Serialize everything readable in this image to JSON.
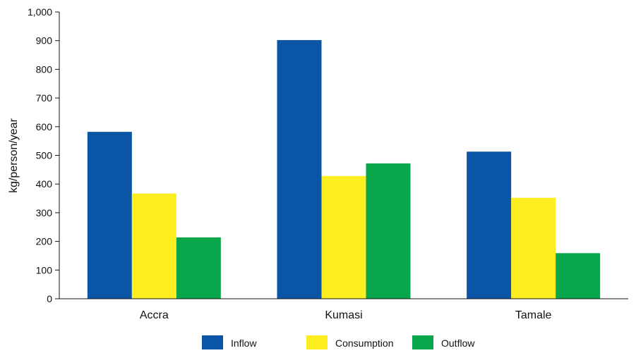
{
  "chart_data": {
    "type": "bar",
    "categories": [
      "Accra",
      "Kumasi",
      "Tamale"
    ],
    "series": [
      {
        "name": "Inflow",
        "color": "#0b55a6",
        "values": [
          582,
          902,
          513
        ]
      },
      {
        "name": "Consumption",
        "color": "#fcee21",
        "values": [
          367,
          428,
          352
        ]
      },
      {
        "name": "Outflow",
        "color": "#0aa64b",
        "values": [
          214,
          472,
          159
        ]
      }
    ],
    "title": "",
    "xlabel": "",
    "ylabel": "kg/person/year",
    "ylim": [
      0,
      1000
    ],
    "yticks": [
      0,
      100,
      200,
      300,
      400,
      500,
      600,
      700,
      800,
      900,
      1000
    ],
    "ytick_labels": [
      "0",
      "100",
      "200",
      "300",
      "400",
      "500",
      "600",
      "700",
      "800",
      "900",
      "1,000"
    ],
    "grid": false,
    "legend_position": "bottom"
  }
}
